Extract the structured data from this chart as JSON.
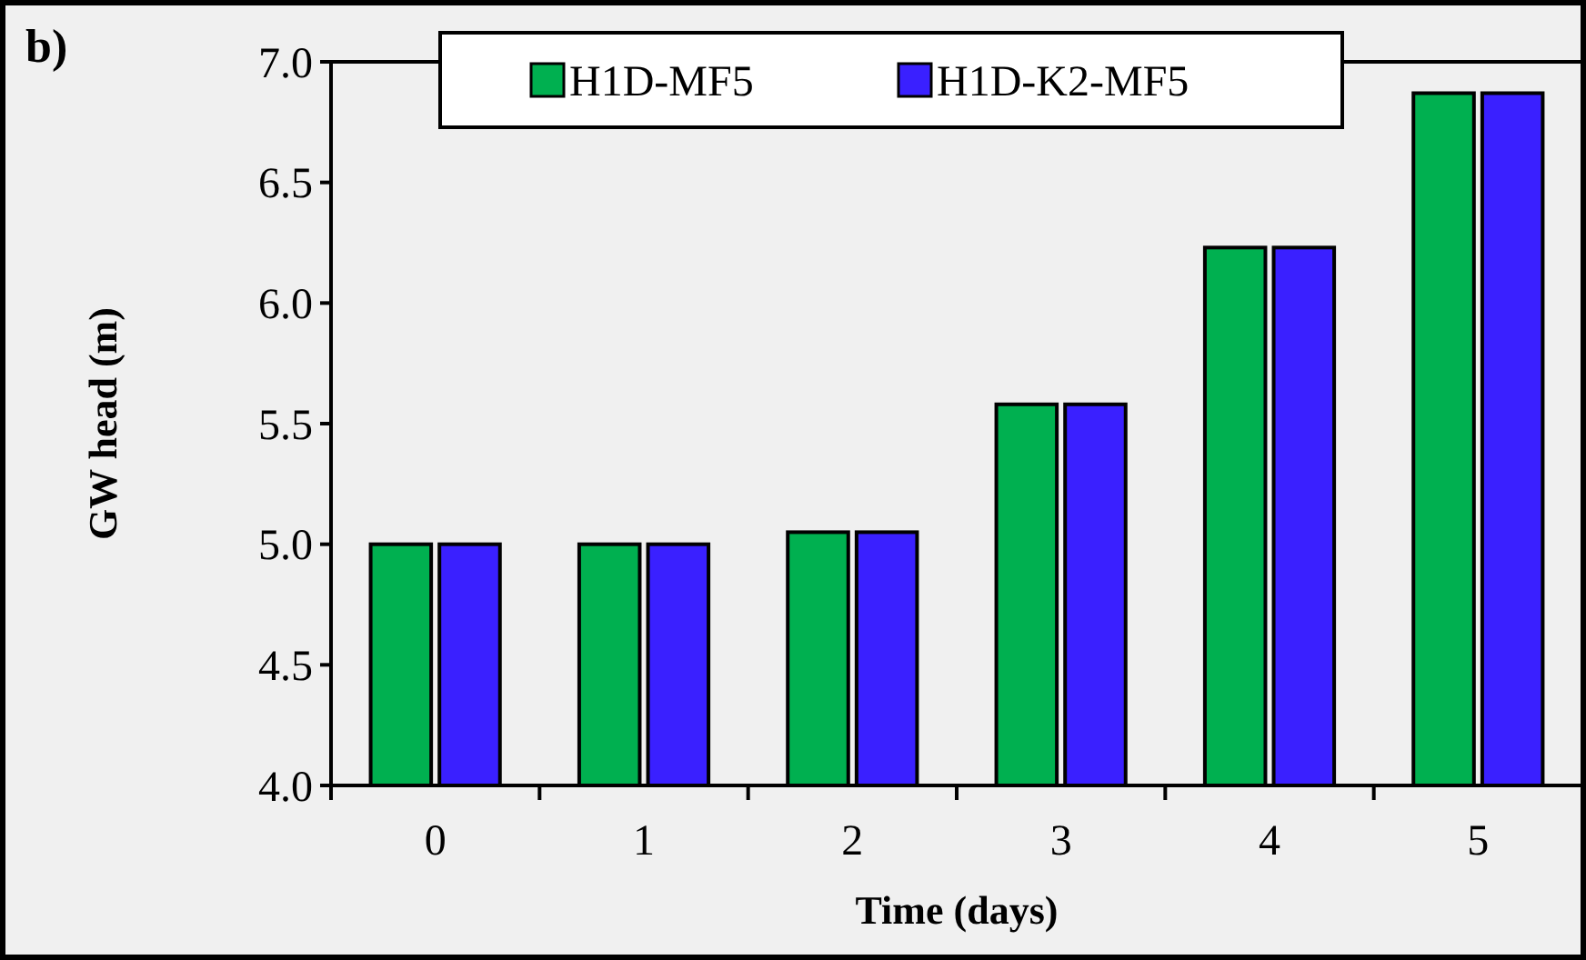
{
  "chart_data": {
    "type": "bar",
    "xlabel": "Time (days)",
    "ylabel": "GW head (m)",
    "annotations": [
      "b)"
    ],
    "categories": [
      "0",
      "1",
      "2",
      "3",
      "4",
      "5"
    ],
    "series": [
      {
        "name": "H1D-MF5",
        "color": "#00b050",
        "values": [
          5.0,
          5.0,
          5.05,
          5.58,
          6.23,
          6.87
        ]
      },
      {
        "name": "H1D-K2-MF5",
        "color": "#3a20ff",
        "values": [
          5.0,
          5.0,
          5.05,
          5.58,
          6.23,
          6.87
        ]
      }
    ],
    "ylim": [
      4.0,
      7.0
    ],
    "yticks": [
      {
        "value": 4,
        "label": "4.0"
      },
      {
        "value": 4.5,
        "label": "4.5"
      },
      {
        "value": 5,
        "label": "5.0"
      },
      {
        "value": 5.5,
        "label": "5.5"
      },
      {
        "value": 6,
        "label": "6.0"
      },
      {
        "value": 6.5,
        "label": "6.5"
      },
      {
        "value": 7,
        "label": "7.0"
      }
    ],
    "grid": false,
    "legend": "top"
  }
}
